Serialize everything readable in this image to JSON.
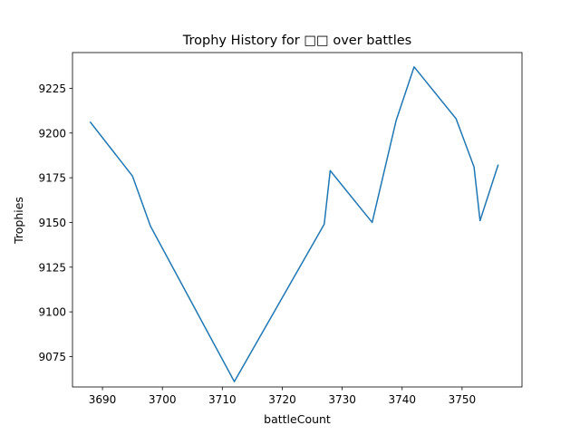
{
  "chart_data": {
    "type": "line",
    "title": "Trophy History for □□ over battles",
    "xlabel": "battleCount",
    "ylabel": "Trophies",
    "xlim": [
      3685,
      3760
    ],
    "ylim": [
      9058,
      9245
    ],
    "xticks": [
      3690,
      3700,
      3710,
      3720,
      3730,
      3740,
      3750
    ],
    "yticks": [
      9075,
      9100,
      9125,
      9150,
      9175,
      9200,
      9225
    ],
    "grid": false,
    "line_color": "#1f77b4",
    "series": [
      {
        "x": [
          3688,
          3695,
          3698,
          3712,
          3727,
          3728,
          3735,
          3739,
          3742,
          3749,
          3752,
          3753,
          3756
        ],
        "y": [
          9206,
          9176,
          9148,
          9061,
          9149,
          9179,
          9150,
          9207,
          9237,
          9208,
          9181,
          9151,
          9182
        ]
      }
    ]
  }
}
